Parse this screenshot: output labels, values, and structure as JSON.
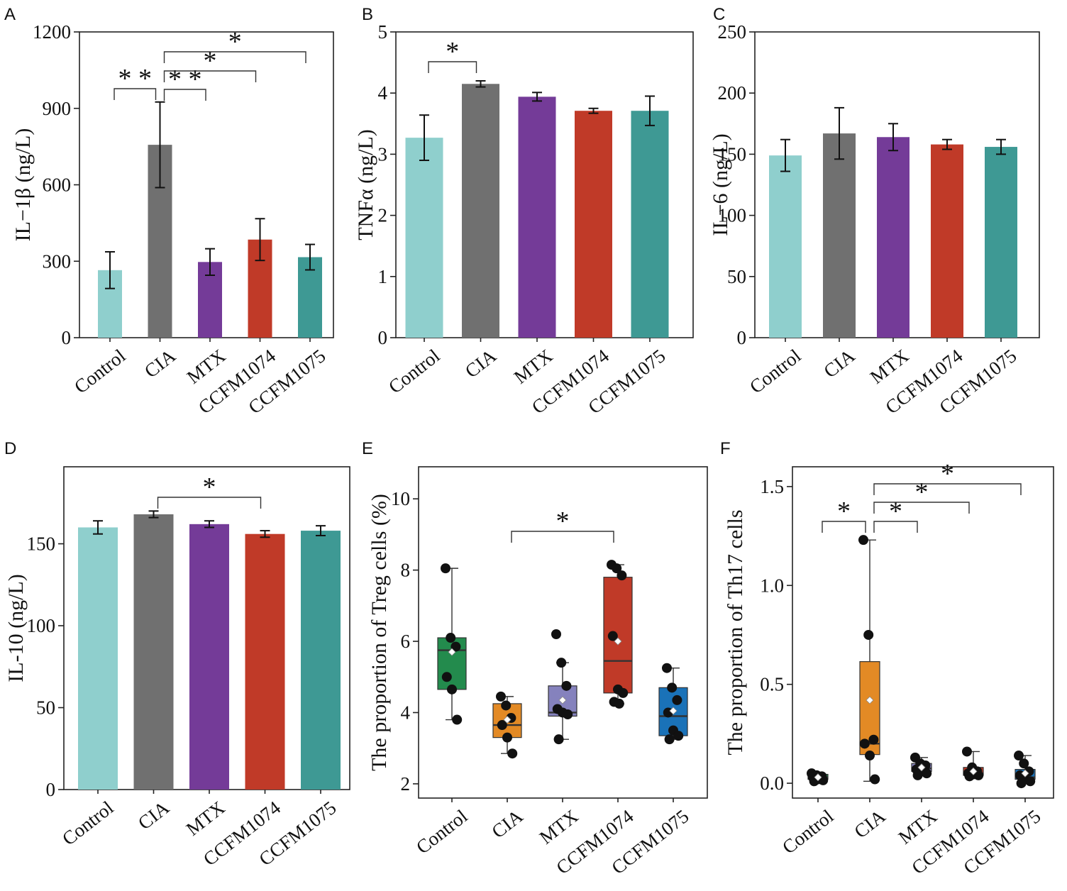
{
  "chart_data": [
    {
      "panel": "A",
      "type": "bar",
      "categories": [
        "Control",
        "CIA",
        "MTX",
        "CCFM1074",
        "CCFM1075"
      ],
      "values": [
        265,
        757,
        297,
        385,
        316
      ],
      "errors": [
        72,
        168,
        52,
        82,
        50
      ],
      "ylabel": "IL−1β (ng/L)",
      "ylim": [
        0,
        1200
      ],
      "yticks": [
        0,
        300,
        600,
        900,
        1200
      ],
      "colors": [
        "#8fcfcd",
        "#707070",
        "#743b98",
        "#c03a28",
        "#3e9994"
      ],
      "significance": [
        {
          "from": 0,
          "to": 1,
          "label": "* *"
        },
        {
          "from": 1,
          "to": 2,
          "label": "* *"
        },
        {
          "from": 1,
          "to": 3,
          "label": "*"
        },
        {
          "from": 1,
          "to": 4,
          "label": "*"
        }
      ]
    },
    {
      "panel": "B",
      "type": "bar",
      "categories": [
        "Control",
        "CIA",
        "MTX",
        "CCFM1074",
        "CCFM1075"
      ],
      "values": [
        3.27,
        4.15,
        3.94,
        3.71,
        3.71
      ],
      "errors": [
        0.37,
        0.05,
        0.07,
        0.04,
        0.24
      ],
      "ylabel": "TNFα (ng/L)",
      "ylim": [
        0,
        5
      ],
      "yticks": [
        0,
        1,
        2,
        3,
        4,
        5
      ],
      "colors": [
        "#8fcfcd",
        "#707070",
        "#743b98",
        "#c03a28",
        "#3e9994"
      ],
      "significance": [
        {
          "from": 0,
          "to": 1,
          "label": "*"
        }
      ]
    },
    {
      "panel": "C",
      "type": "bar",
      "categories": [
        "Control",
        "CIA",
        "MTX",
        "CCFM1074",
        "CCFM1075"
      ],
      "values": [
        149,
        167,
        164,
        158,
        156
      ],
      "errors": [
        13,
        21,
        11,
        4,
        6
      ],
      "ylabel": "IL−6 (ng/L)",
      "ylim": [
        0,
        250
      ],
      "yticks": [
        0,
        50,
        100,
        150,
        200,
        250
      ],
      "colors": [
        "#8fcfcd",
        "#707070",
        "#743b98",
        "#c03a28",
        "#3e9994"
      ],
      "significance": []
    },
    {
      "panel": "D",
      "type": "bar",
      "categories": [
        "Control",
        "CIA",
        "MTX",
        "CCFM1074",
        "CCFM1075"
      ],
      "values": [
        160,
        168,
        162,
        156,
        158
      ],
      "errors": [
        4,
        2,
        2,
        2,
        3
      ],
      "ylabel": "IL-10 (ng/L)",
      "ylim": [
        0,
        197
      ],
      "yticks": [
        0,
        50,
        100,
        150
      ],
      "colors": [
        "#8fcfcd",
        "#707070",
        "#743b98",
        "#c03a28",
        "#3e9994"
      ],
      "significance": [
        {
          "from": 1,
          "to": 3,
          "label": "*"
        }
      ]
    },
    {
      "panel": "E",
      "type": "box",
      "categories": [
        "Control",
        "CIA",
        "MTX",
        "CCFM1074",
        "CCFM1075"
      ],
      "ylabel": "The proportion of Treg cells (%)",
      "ylim": [
        1.6,
        10.9
      ],
      "yticks": [
        2,
        4,
        6,
        8,
        10
      ],
      "colors": [
        "#238b4d",
        "#e38a25",
        "#8582bd",
        "#c03a28",
        "#1a72b8"
      ],
      "boxes": [
        {
          "q1": 4.65,
          "median": 5.75,
          "q3": 6.1,
          "whislo": 3.8,
          "whishi": 8.05,
          "mean": 5.7,
          "points": [
            8.05,
            6.1,
            5.85,
            5.0,
            4.65,
            3.8
          ]
        },
        {
          "q1": 3.3,
          "median": 3.65,
          "q3": 4.25,
          "whislo": 2.85,
          "whishi": 4.45,
          "mean": 3.8,
          "points": [
            4.45,
            4.2,
            3.85,
            3.65,
            3.3,
            2.85
          ]
        },
        {
          "q1": 3.9,
          "median": 4.0,
          "q3": 4.75,
          "whislo": 3.25,
          "whishi": 5.4,
          "mean": 4.35,
          "points": [
            6.2,
            5.4,
            4.75,
            4.1,
            4.0,
            3.95,
            3.25
          ]
        },
        {
          "q1": 4.55,
          "median": 5.45,
          "q3": 7.8,
          "whislo": 4.25,
          "whishi": 8.15,
          "mean": 6.0,
          "points": [
            8.15,
            8.05,
            7.85,
            6.15,
            4.65,
            4.55,
            4.3,
            4.25
          ]
        },
        {
          "q1": 3.35,
          "median": 3.9,
          "q3": 4.7,
          "whislo": 3.25,
          "whishi": 5.25,
          "mean": 4.05,
          "points": [
            5.25,
            4.7,
            4.35,
            4.0,
            3.5,
            3.35,
            3.25
          ]
        }
      ],
      "significance": [
        {
          "from": 1,
          "to": 3,
          "label": "*"
        }
      ]
    },
    {
      "panel": "F",
      "type": "box",
      "categories": [
        "Control",
        "CIA",
        "MTX",
        "CCFM1074",
        "CCFM1075"
      ],
      "ylabel": "The proportion of Th17 cells",
      "ylim": [
        -0.075,
        1.6
      ],
      "yticks": [
        0.0,
        0.5,
        1.0,
        1.5
      ],
      "yticklabels": [
        "0.0",
        "0.5",
        "1.0",
        "1.5"
      ],
      "colors": [
        "#238b4d",
        "#e38a25",
        "#8582bd",
        "#c03a28",
        "#1a72b8"
      ],
      "boxes": [
        {
          "q1": 0.02,
          "median": 0.03,
          "q3": 0.045,
          "whislo": 0.01,
          "whishi": 0.05,
          "mean": 0.03,
          "points": [
            0.05,
            0.04,
            0.035,
            0.03,
            0.02,
            0.015,
            0.01
          ]
        },
        {
          "q1": 0.145,
          "median": 0.2,
          "q3": 0.615,
          "whislo": 0.01,
          "whishi": 1.23,
          "mean": 0.42,
          "points": [
            1.23,
            0.75,
            0.22,
            0.2,
            0.14,
            0.02
          ]
        },
        {
          "q1": 0.06,
          "median": 0.075,
          "q3": 0.1,
          "whislo": 0.04,
          "whishi": 0.13,
          "mean": 0.08,
          "points": [
            0.13,
            0.1,
            0.09,
            0.07,
            0.06,
            0.05,
            0.04
          ]
        },
        {
          "q1": 0.04,
          "median": 0.05,
          "q3": 0.08,
          "whislo": 0.03,
          "whishi": 0.16,
          "mean": 0.06,
          "points": [
            0.16,
            0.08,
            0.06,
            0.05,
            0.045,
            0.04,
            0.035
          ]
        },
        {
          "q1": 0.02,
          "median": 0.03,
          "q3": 0.07,
          "whislo": 0.0,
          "whishi": 0.14,
          "mean": 0.05,
          "points": [
            0.14,
            0.1,
            0.06,
            0.04,
            0.02,
            0.01,
            0.0
          ]
        }
      ],
      "significance": [
        {
          "from": 0,
          "to": 1,
          "label": "*"
        },
        {
          "from": 1,
          "to": 2,
          "label": "*"
        },
        {
          "from": 1,
          "to": 3,
          "label": "*"
        },
        {
          "from": 1,
          "to": 4,
          "label": "*"
        }
      ]
    }
  ]
}
